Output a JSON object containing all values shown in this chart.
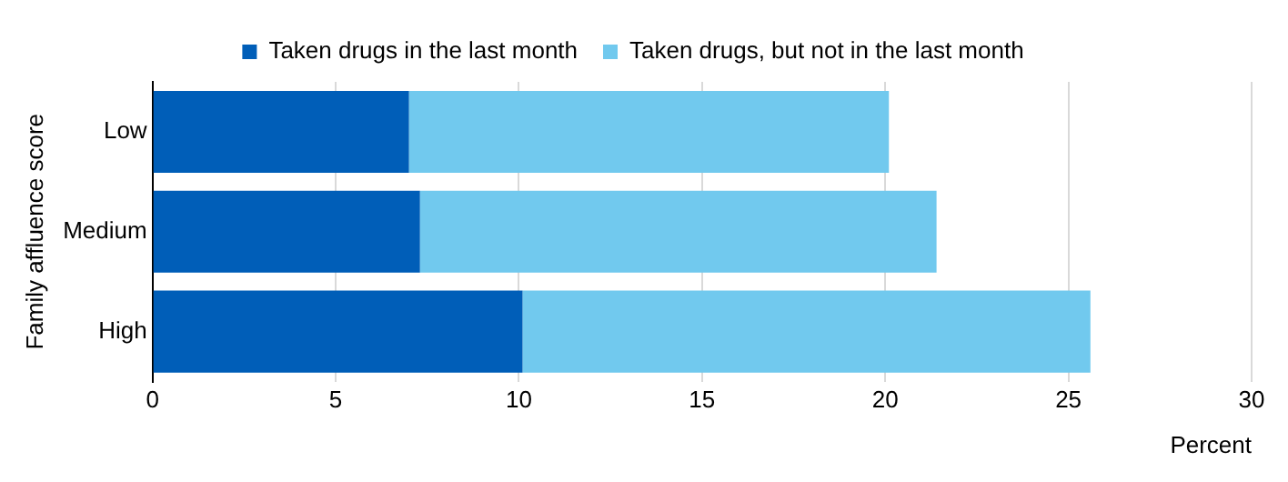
{
  "chart_data": {
    "type": "bar",
    "orientation": "horizontal",
    "stacked": true,
    "categories": [
      "Low",
      "Medium",
      "High"
    ],
    "series": [
      {
        "name": "Taken drugs in the last month",
        "color": "#005eb8",
        "values": [
          7.0,
          7.3,
          10.1
        ]
      },
      {
        "name": "Taken drugs, but not in the last month",
        "color": "#71c9ee",
        "values": [
          13.1,
          14.1,
          15.5
        ]
      }
    ],
    "xlabel": "Percent",
    "ylabel": "Family affluence score",
    "xlim": [
      0,
      30
    ],
    "xticks": [
      0,
      5,
      10,
      15,
      20,
      25,
      30
    ],
    "grid": "x",
    "legend": "top"
  }
}
